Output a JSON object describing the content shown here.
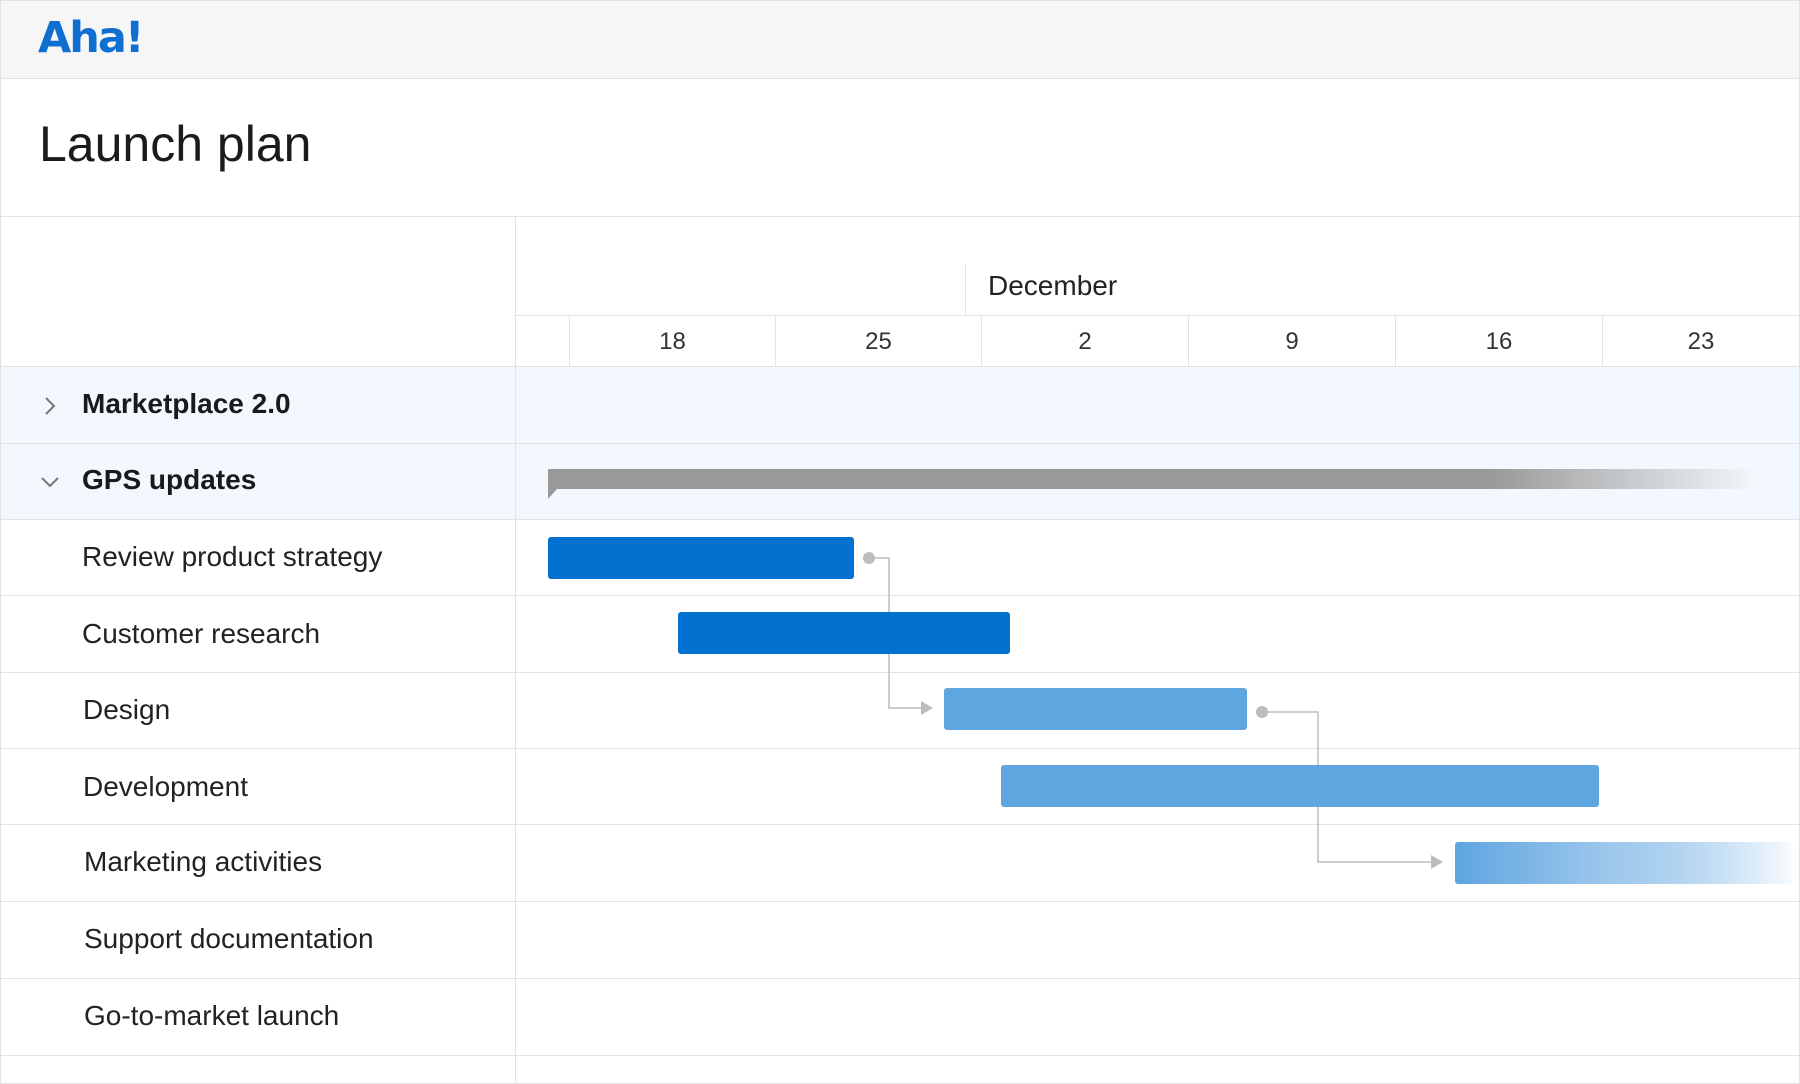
{
  "app": {
    "logo_text": "Aha!"
  },
  "page": {
    "title": "Launch plan"
  },
  "timeline": {
    "month": "December",
    "dates": [
      "",
      "18",
      "25",
      "2",
      "9",
      "16",
      "23"
    ]
  },
  "groups": [
    {
      "label": "Marketplace 2.0",
      "expanded": false,
      "icon": "chevron-right-icon"
    },
    {
      "label": "GPS updates",
      "expanded": true,
      "icon": "chevron-down-icon"
    }
  ],
  "tasks": [
    {
      "label": "Review product strategy",
      "status_color": "#0371d0"
    },
    {
      "label": "Customer research",
      "status_color": "#0371d0"
    },
    {
      "label": "Design",
      "status_color": "#5fa5e0"
    },
    {
      "label": "Development",
      "status_color": "#5fa5e0"
    },
    {
      "label": "Marketing activities",
      "status_color": "#5fa5e0"
    },
    {
      "label": "Support documentation"
    },
    {
      "label": "Go-to-market launch"
    }
  ],
  "colors": {
    "brand": "#0f6fd1",
    "bar_dark": "#0371d0",
    "bar_light": "#5fa5e0",
    "summary_bar": "#999999",
    "connector": "#bdbdbd"
  }
}
